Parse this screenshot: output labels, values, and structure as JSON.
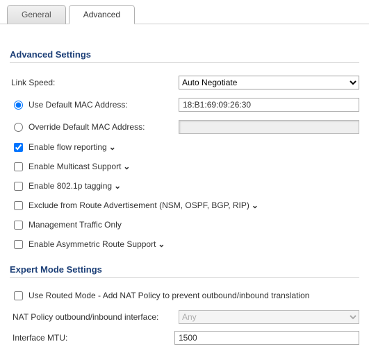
{
  "tabs": {
    "general": "General",
    "advanced": "Advanced"
  },
  "advanced": {
    "title": "Advanced Settings",
    "link_speed_label": "Link Speed:",
    "link_speed_value": "Auto Negotiate",
    "use_default_mac_label": "Use Default MAC Address:",
    "use_default_mac_value": "18:B1:69:09:26:30",
    "override_mac_label": "Override Default MAC Address:",
    "override_mac_value": "",
    "enable_flow_reporting": "Enable flow reporting",
    "enable_multicast": "Enable Multicast Support",
    "enable_8021p": "Enable 802.1p tagging",
    "exclude_route_adv": "Exclude from Route Advertisement (NSM, OSPF, BGP, RIP)",
    "mgmt_traffic_only": "Management Traffic Only",
    "enable_asym_route": "Enable Asymmetric Route Support"
  },
  "expert": {
    "title": "Expert Mode Settings",
    "use_routed_mode": "Use Routed Mode - Add NAT Policy to prevent outbound/inbound translation",
    "nat_policy_label": "NAT Policy outbound/inbound interface:",
    "nat_policy_value": "Any",
    "mtu_label": "Interface MTU:",
    "mtu_value": "1500"
  },
  "state": {
    "mac_mode": "default",
    "flow_reporting": true,
    "multicast": false,
    "dot1p": false,
    "exclude_route": false,
    "mgmt_only": false,
    "asym_route": false,
    "routed_mode": false
  },
  "colors": {
    "section_title": "#1c3f77",
    "divider": "#d0d0d0",
    "tab_border": "#b0b0b0"
  }
}
